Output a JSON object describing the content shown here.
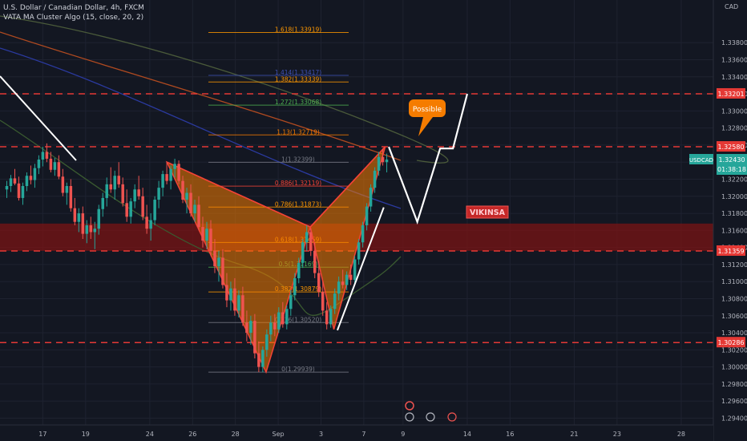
{
  "header": {
    "symbol_line": "U.S. Dollar / Canadian Dollar, 4h, FXCM",
    "indicator_line": "VATA MA Cluster Algo (15, close, 20, 2)"
  },
  "chart_data": {
    "type": "candlestick",
    "currency": "CAD",
    "ylim": [
      1.2932,
      1.343
    ],
    "y_ticks": [
      "1.33800",
      "1.33600",
      "1.33400",
      "1.33200",
      "1.33000",
      "1.32800",
      "1.32600",
      "1.32400",
      "1.32200",
      "1.32000",
      "1.31800",
      "1.31600",
      "1.31400",
      "1.31200",
      "1.31000",
      "1.30800",
      "1.30600",
      "1.30400",
      "1.30200",
      "1.30000",
      "1.29800",
      "1.29600",
      "1.29400"
    ],
    "x_ticks": [
      {
        "label": "17",
        "x": 0.06
      },
      {
        "label": "19",
        "x": 0.12
      },
      {
        "label": "24",
        "x": 0.21
      },
      {
        "label": "26",
        "x": 0.27
      },
      {
        "label": "28",
        "x": 0.33
      },
      {
        "label": "Sep",
        "x": 0.39
      },
      {
        "label": "3",
        "x": 0.45
      },
      {
        "label": "7",
        "x": 0.51
      },
      {
        "label": "9",
        "x": 0.565
      },
      {
        "label": "14",
        "x": 0.655
      },
      {
        "label": "16",
        "x": 0.715
      },
      {
        "label": "21",
        "x": 0.805
      },
      {
        "label": "23",
        "x": 0.865
      },
      {
        "label": "28",
        "x": 0.955
      }
    ],
    "fib_levels": [
      {
        "label": "1.618(1.33919)",
        "value": 1.33919,
        "color": "#ff9800"
      },
      {
        "label": "1.414(1.33417)",
        "value": 1.33417,
        "color": "#3f51b5"
      },
      {
        "label": "1.382(1.33339)",
        "value": 1.33339,
        "color": "#ff9800"
      },
      {
        "label": "1.272(1.33068)",
        "value": 1.33068,
        "color": "#4caf50"
      },
      {
        "label": "1.13(1.32719)",
        "value": 1.32719,
        "color": "#f57c00"
      },
      {
        "label": "1(1.32399)",
        "value": 1.32399,
        "color": "#787b86"
      },
      {
        "label": "0.886(1.32119)",
        "value": 1.32119,
        "color": "#f44336"
      },
      {
        "label": "0.786(1.31873)",
        "value": 1.31873,
        "color": "#ff9800"
      },
      {
        "label": "0.618(1.31459)",
        "value": 1.31459,
        "color": "#ff9800"
      },
      {
        "label": "0.5(1.31169)",
        "value": 1.31169,
        "color": "#4caf50"
      },
      {
        "label": "0.382(1.30879)",
        "value": 1.30879,
        "color": "#ff9800"
      },
      {
        "label": "0.236(1.30520)",
        "value": 1.3052,
        "color": "#787b86"
      },
      {
        "label": "0(1.29939)",
        "value": 1.29939,
        "color": "#787b86"
      }
    ],
    "horizontal_lines": [
      {
        "label": "1.33201",
        "value": 1.33201
      },
      {
        "label": "1.32580",
        "value": 1.3258
      },
      {
        "label": "1.31359",
        "value": 1.31359
      },
      {
        "label": "1.30286",
        "value": 1.30286
      }
    ],
    "zone": {
      "top": 1.3168,
      "bottom": 1.3136,
      "label": "VIKINSA"
    },
    "current_price": {
      "symbol": "USDCAD",
      "value": "1.32430",
      "timer": "01:38:18"
    },
    "callout": "Possible",
    "pattern_points": [
      {
        "x": 0.234,
        "y": 1.324
      },
      {
        "x": 0.373,
        "y": 1.2994
      },
      {
        "x": 0.435,
        "y": 1.3164
      },
      {
        "x": 0.468,
        "y": 1.3044
      },
      {
        "x": 0.54,
        "y": 1.3258
      }
    ],
    "projection_path": [
      {
        "x": 0.545,
        "y": 1.3258
      },
      {
        "x": 0.585,
        "y": 1.317
      },
      {
        "x": 0.617,
        "y": 1.3256
      },
      {
        "x": 0.635,
        "y": 1.3256
      },
      {
        "x": 0.655,
        "y": 1.332
      }
    ],
    "white_arrow_up": [
      {
        "x": 0.473,
        "y": 1.3043
      },
      {
        "x": 0.538,
        "y": 1.3187
      }
    ],
    "candles": [
      [
        1.3208,
        1.3218,
        1.3198,
        1.3212
      ],
      [
        1.3212,
        1.3225,
        1.3205,
        1.3221
      ],
      [
        1.3221,
        1.3232,
        1.3213,
        1.3215
      ],
      [
        1.3215,
        1.3223,
        1.3195,
        1.3198
      ],
      [
        1.3198,
        1.3216,
        1.319,
        1.3212
      ],
      [
        1.3212,
        1.3228,
        1.3206,
        1.3224
      ],
      [
        1.3224,
        1.3236,
        1.3214,
        1.3219
      ],
      [
        1.3219,
        1.3238,
        1.321,
        1.3233
      ],
      [
        1.3233,
        1.3248,
        1.3226,
        1.3243
      ],
      [
        1.3243,
        1.3258,
        1.3235,
        1.3252
      ],
      [
        1.3252,
        1.3262,
        1.324,
        1.3244
      ],
      [
        1.3244,
        1.3252,
        1.3228,
        1.3231
      ],
      [
        1.3231,
        1.3245,
        1.3224,
        1.324
      ],
      [
        1.324,
        1.3248,
        1.322,
        1.3223
      ],
      [
        1.3223,
        1.3232,
        1.32,
        1.3204
      ],
      [
        1.3204,
        1.3216,
        1.319,
        1.3212
      ],
      [
        1.3212,
        1.322,
        1.3182,
        1.3186
      ],
      [
        1.3186,
        1.3198,
        1.3166,
        1.317
      ],
      [
        1.317,
        1.3186,
        1.3158,
        1.318
      ],
      [
        1.318,
        1.3188,
        1.315,
        1.3156
      ],
      [
        1.3156,
        1.3172,
        1.3145,
        1.3166
      ],
      [
        1.3166,
        1.3176,
        1.315,
        1.3158
      ],
      [
        1.3158,
        1.317,
        1.3138,
        1.3162
      ],
      [
        1.3162,
        1.319,
        1.3155,
        1.3185
      ],
      [
        1.3185,
        1.3204,
        1.3176,
        1.3198
      ],
      [
        1.3198,
        1.3222,
        1.3188,
        1.3214
      ],
      [
        1.3214,
        1.3234,
        1.3204,
        1.3208
      ],
      [
        1.3208,
        1.323,
        1.3196,
        1.3224
      ],
      [
        1.3224,
        1.324,
        1.321,
        1.3214
      ],
      [
        1.3214,
        1.3222,
        1.3188,
        1.3192
      ],
      [
        1.3192,
        1.3208,
        1.317,
        1.3176
      ],
      [
        1.3176,
        1.3198,
        1.3168,
        1.3194
      ],
      [
        1.3194,
        1.3214,
        1.3186,
        1.3208
      ],
      [
        1.3208,
        1.3224,
        1.3196,
        1.32
      ],
      [
        1.32,
        1.321,
        1.3172,
        1.3176
      ],
      [
        1.3176,
        1.319,
        1.3156,
        1.3162
      ],
      [
        1.3162,
        1.318,
        1.3148,
        1.3172
      ],
      [
        1.3172,
        1.32,
        1.3166,
        1.3196
      ],
      [
        1.3196,
        1.3218,
        1.3186,
        1.321
      ],
      [
        1.321,
        1.323,
        1.32,
        1.3226
      ],
      [
        1.3226,
        1.324,
        1.3214,
        1.3218
      ],
      [
        1.3218,
        1.3236,
        1.3208,
        1.3232
      ],
      [
        1.3232,
        1.3244,
        1.3222,
        1.3238
      ],
      [
        1.3238,
        1.3242,
        1.3214,
        1.3218
      ],
      [
        1.3218,
        1.3224,
        1.3192,
        1.3196
      ],
      [
        1.3196,
        1.321,
        1.318,
        1.3204
      ],
      [
        1.3204,
        1.3214,
        1.3176,
        1.318
      ],
      [
        1.318,
        1.3196,
        1.317,
        1.319
      ],
      [
        1.319,
        1.32,
        1.316,
        1.3164
      ],
      [
        1.3164,
        1.3176,
        1.314,
        1.3148
      ],
      [
        1.3148,
        1.317,
        1.3138,
        1.3162
      ],
      [
        1.3162,
        1.3172,
        1.313,
        1.3136
      ],
      [
        1.3136,
        1.315,
        1.311,
        1.3118
      ],
      [
        1.3118,
        1.3136,
        1.31,
        1.3128
      ],
      [
        1.3128,
        1.3138,
        1.3092,
        1.3096
      ],
      [
        1.3096,
        1.311,
        1.307,
        1.3078
      ],
      [
        1.3078,
        1.31,
        1.3066,
        1.3092
      ],
      [
        1.3092,
        1.3104,
        1.306,
        1.3066
      ],
      [
        1.3066,
        1.309,
        1.3058,
        1.3084
      ],
      [
        1.3084,
        1.3094,
        1.3048,
        1.3052
      ],
      [
        1.3052,
        1.3066,
        1.303,
        1.304
      ],
      [
        1.304,
        1.306,
        1.3026,
        1.3054
      ],
      [
        1.3054,
        1.3062,
        1.301,
        1.3016
      ],
      [
        1.3016,
        1.303,
        1.2994,
        1.3
      ],
      [
        1.3,
        1.3024,
        1.2994,
        1.302
      ],
      [
        1.302,
        1.3044,
        1.3012,
        1.3038
      ],
      [
        1.3038,
        1.306,
        1.303,
        1.3052
      ],
      [
        1.3052,
        1.3062,
        1.3036,
        1.3044
      ],
      [
        1.3044,
        1.307,
        1.304,
        1.3064
      ],
      [
        1.3064,
        1.3076,
        1.3046,
        1.305
      ],
      [
        1.305,
        1.3072,
        1.3044,
        1.3068
      ],
      [
        1.3068,
        1.309,
        1.306,
        1.3084
      ],
      [
        1.3084,
        1.311,
        1.3078,
        1.3104
      ],
      [
        1.3104,
        1.3128,
        1.3098,
        1.3122
      ],
      [
        1.3122,
        1.315,
        1.3116,
        1.3146
      ],
      [
        1.3146,
        1.3166,
        1.3136,
        1.3158
      ],
      [
        1.3158,
        1.3162,
        1.313,
        1.3136
      ],
      [
        1.3136,
        1.3146,
        1.3104,
        1.311
      ],
      [
        1.311,
        1.3124,
        1.3082,
        1.3088
      ],
      [
        1.3088,
        1.31,
        1.306,
        1.3066
      ],
      [
        1.3066,
        1.3076,
        1.3044,
        1.305
      ],
      [
        1.305,
        1.3072,
        1.3046,
        1.3068
      ],
      [
        1.3068,
        1.3092,
        1.3062,
        1.3086
      ],
      [
        1.3086,
        1.3106,
        1.3078,
        1.31
      ],
      [
        1.31,
        1.3114,
        1.3092,
        1.3096
      ],
      [
        1.3096,
        1.3112,
        1.309,
        1.3108
      ],
      [
        1.3108,
        1.312,
        1.3096,
        1.3102
      ],
      [
        1.3102,
        1.313,
        1.3098,
        1.3126
      ],
      [
        1.3126,
        1.315,
        1.312,
        1.3146
      ],
      [
        1.3146,
        1.317,
        1.314,
        1.3166
      ],
      [
        1.3166,
        1.3192,
        1.316,
        1.3188
      ],
      [
        1.3188,
        1.3214,
        1.3182,
        1.321
      ],
      [
        1.321,
        1.3234,
        1.3204,
        1.323
      ],
      [
        1.323,
        1.3252,
        1.3224,
        1.3246
      ],
      [
        1.3246,
        1.3256,
        1.3236,
        1.324
      ],
      [
        1.324,
        1.325,
        1.3228,
        1.3243
      ]
    ]
  }
}
